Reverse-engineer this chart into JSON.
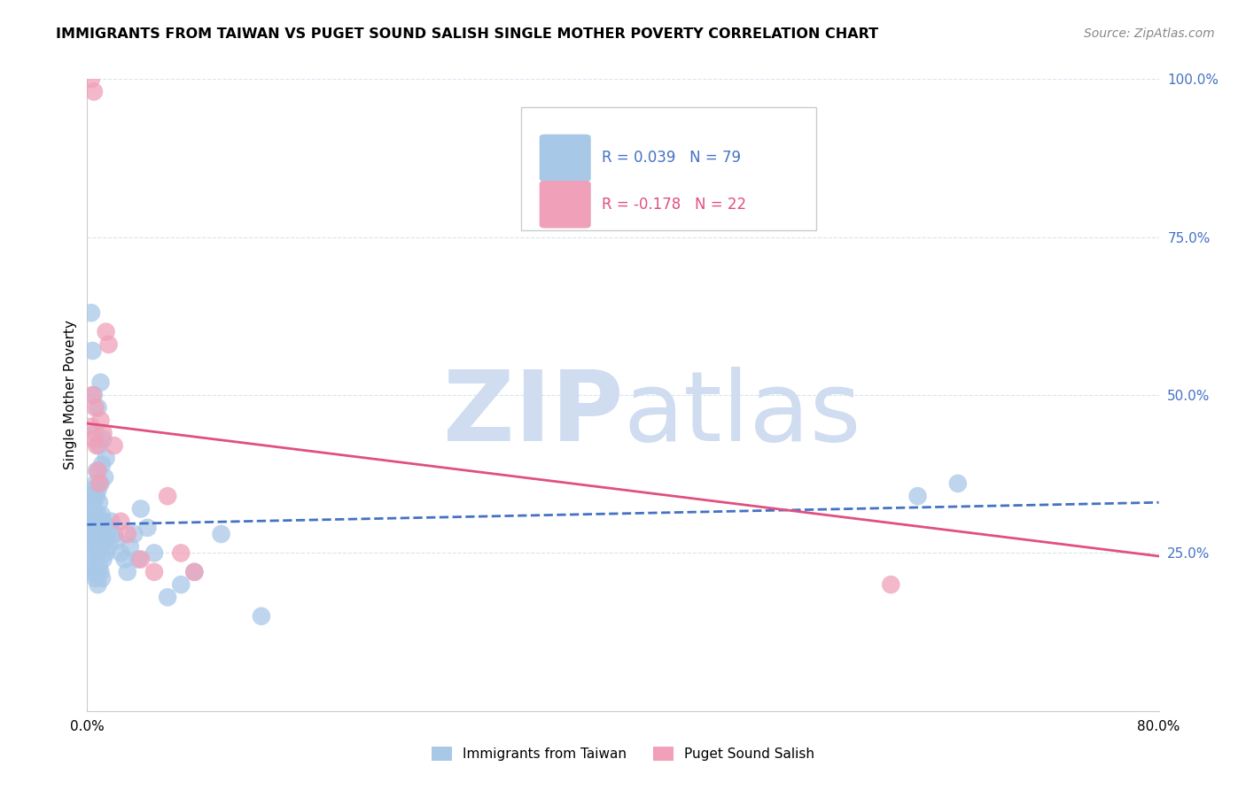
{
  "title": "IMMIGRANTS FROM TAIWAN VS PUGET SOUND SALISH SINGLE MOTHER POVERTY CORRELATION CHART",
  "source": "Source: ZipAtlas.com",
  "ylabel": "Single Mother Poverty",
  "legend_label1": "Immigrants from Taiwan",
  "legend_label2": "Puget Sound Salish",
  "R1": 0.039,
  "N1": 79,
  "R2": -0.178,
  "N2": 22,
  "xlim": [
    0.0,
    0.8
  ],
  "ylim": [
    0.0,
    1.0
  ],
  "y_ticks_right": [
    0.25,
    0.5,
    0.75,
    1.0
  ],
  "y_tick_labels_right": [
    "25.0%",
    "50.0%",
    "75.0%",
    "100.0%"
  ],
  "blue_color": "#A8C8E8",
  "blue_line_color": "#4472C4",
  "pink_color": "#F0A0B8",
  "pink_line_color": "#E05080",
  "watermark_color": "#D0DCF0",
  "background_color": "#FFFFFF",
  "grid_color": "#D8E4F0",
  "blue_trend_y_start": 0.295,
  "blue_trend_y_end": 0.33,
  "pink_trend_y_start": 0.455,
  "pink_trend_y_end": 0.245,
  "blue_x": [
    0.002,
    0.003,
    0.003,
    0.004,
    0.004,
    0.005,
    0.005,
    0.005,
    0.006,
    0.006,
    0.006,
    0.007,
    0.007,
    0.007,
    0.008,
    0.008,
    0.008,
    0.009,
    0.009,
    0.01,
    0.01,
    0.011,
    0.011,
    0.012,
    0.012,
    0.013,
    0.014,
    0.015,
    0.016,
    0.017,
    0.003,
    0.004,
    0.005,
    0.006,
    0.007,
    0.008,
    0.009,
    0.01,
    0.011,
    0.012,
    0.003,
    0.004,
    0.005,
    0.006,
    0.007,
    0.008,
    0.009,
    0.01,
    0.003,
    0.004,
    0.005,
    0.006,
    0.007,
    0.008,
    0.009,
    0.01,
    0.011,
    0.012,
    0.013,
    0.014,
    0.018,
    0.02,
    0.022,
    0.025,
    0.028,
    0.03,
    0.032,
    0.035,
    0.038,
    0.04,
    0.045,
    0.05,
    0.06,
    0.07,
    0.08,
    0.1,
    0.13,
    0.62,
    0.65
  ],
  "blue_y": [
    0.3,
    0.31,
    0.27,
    0.28,
    0.32,
    0.29,
    0.3,
    0.25,
    0.28,
    0.31,
    0.26,
    0.29,
    0.3,
    0.27,
    0.28,
    0.31,
    0.25,
    0.29,
    0.27,
    0.3,
    0.28,
    0.26,
    0.31,
    0.28,
    0.3,
    0.27,
    0.25,
    0.28,
    0.26,
    0.29,
    0.22,
    0.23,
    0.24,
    0.21,
    0.22,
    0.2,
    0.23,
    0.22,
    0.21,
    0.24,
    0.34,
    0.35,
    0.33,
    0.36,
    0.34,
    0.35,
    0.33,
    0.36,
    0.63,
    0.57,
    0.5,
    0.44,
    0.38,
    0.48,
    0.42,
    0.52,
    0.39,
    0.43,
    0.37,
    0.4,
    0.3,
    0.28,
    0.27,
    0.25,
    0.24,
    0.22,
    0.26,
    0.28,
    0.24,
    0.32,
    0.29,
    0.25,
    0.18,
    0.2,
    0.22,
    0.28,
    0.15,
    0.34,
    0.36
  ],
  "pink_x": [
    0.003,
    0.004,
    0.005,
    0.006,
    0.007,
    0.008,
    0.009,
    0.01,
    0.012,
    0.014,
    0.016,
    0.02,
    0.025,
    0.03,
    0.04,
    0.05,
    0.06,
    0.07,
    0.08,
    0.6,
    0.003,
    0.005
  ],
  "pink_y": [
    0.45,
    0.5,
    0.43,
    0.48,
    0.42,
    0.38,
    0.36,
    0.46,
    0.44,
    0.6,
    0.58,
    0.42,
    0.3,
    0.28,
    0.24,
    0.22,
    0.34,
    0.25,
    0.22,
    0.2,
    1.0,
    0.98
  ]
}
